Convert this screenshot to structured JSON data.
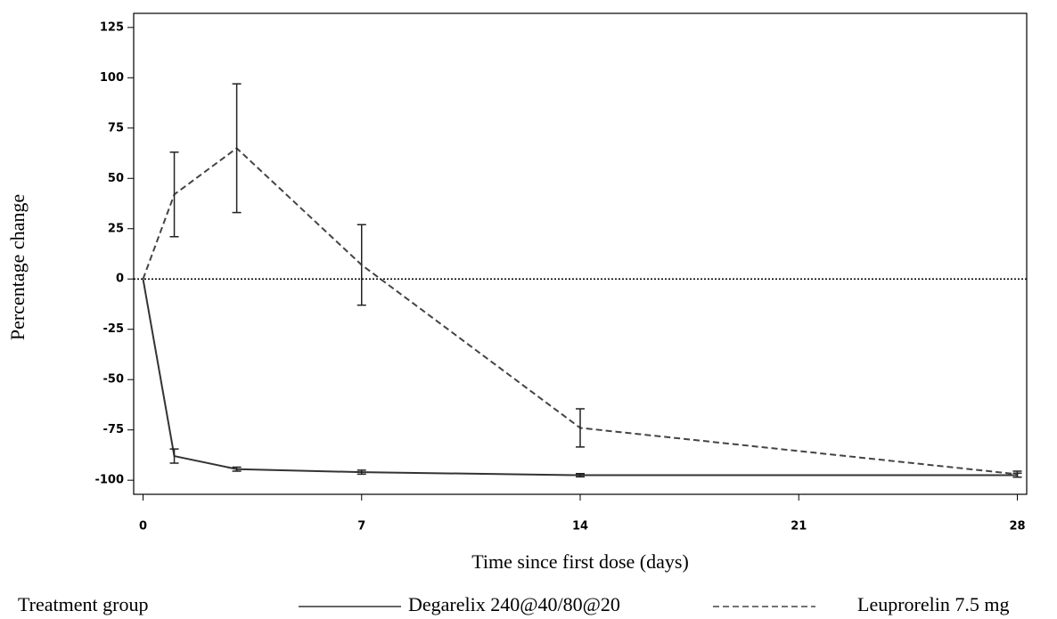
{
  "chart_data": {
    "type": "line",
    "x_label": "Time since first dose (days)",
    "y_label": "Percentage change",
    "legend_title": "Treatment group",
    "legend_position": "bottom",
    "reference_line": 0,
    "xlim": [
      -0.3,
      28.3
    ],
    "ylim": [
      -107,
      132
    ],
    "xticks": [
      0,
      7,
      14,
      21,
      28
    ],
    "yticks": [
      -100,
      -75,
      -50,
      -25,
      0,
      25,
      50,
      75,
      100,
      125
    ],
    "x": [
      0,
      1,
      3,
      7,
      14,
      28
    ],
    "series": [
      {
        "name": "Degarelix 240@40/80@20",
        "color": "#333333",
        "line_style": "solid",
        "values": [
          0,
          -88,
          -94.5,
          -96,
          -97.5,
          -97.5
        ],
        "errors": [
          null,
          3.5,
          1,
          1,
          0.8,
          1
        ]
      },
      {
        "name": "Leuprorelin 7.5 mg",
        "color": "#444444",
        "line_style": "dashed",
        "values": [
          0,
          42,
          65,
          7,
          -74,
          -97
        ],
        "errors": [
          null,
          21,
          32,
          20,
          9.5,
          1.5
        ]
      }
    ]
  }
}
